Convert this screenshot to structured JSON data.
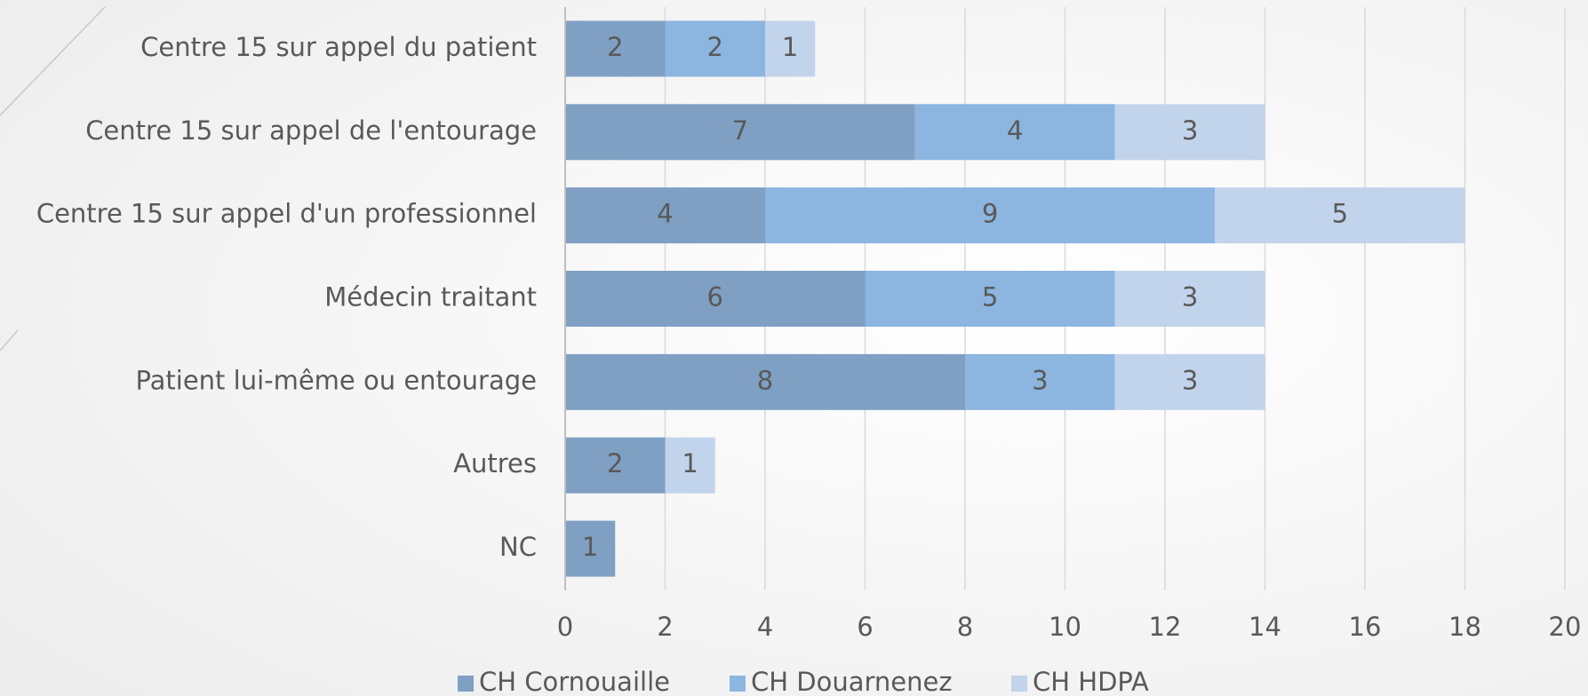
{
  "chart_data": {
    "type": "stacked-barh",
    "categories": [
      "Centre 15 sur appel du patient",
      "Centre 15 sur appel de l'entourage",
      "Centre 15 sur appel d'un professionnel",
      "Médecin traitant",
      "Patient lui-même ou entourage",
      "Autres",
      "NC"
    ],
    "series": [
      {
        "name": "CH Cornouaille",
        "color": "#7fa0c3",
        "values": [
          2,
          7,
          4,
          6,
          8,
          2,
          1
        ]
      },
      {
        "name": "CH Douarnenez",
        "color": "#8cb5e0",
        "values": [
          2,
          4,
          9,
          5,
          3,
          null,
          null
        ]
      },
      {
        "name": "CH HDPA",
        "color": "#c2d4eb",
        "values": [
          1,
          3,
          5,
          3,
          3,
          1,
          null
        ]
      }
    ],
    "xlim": [
      0,
      20
    ],
    "xticks": [
      0,
      2,
      4,
      6,
      8,
      10,
      12,
      14,
      16,
      18,
      20
    ],
    "grid": true,
    "legend": "bottom"
  }
}
